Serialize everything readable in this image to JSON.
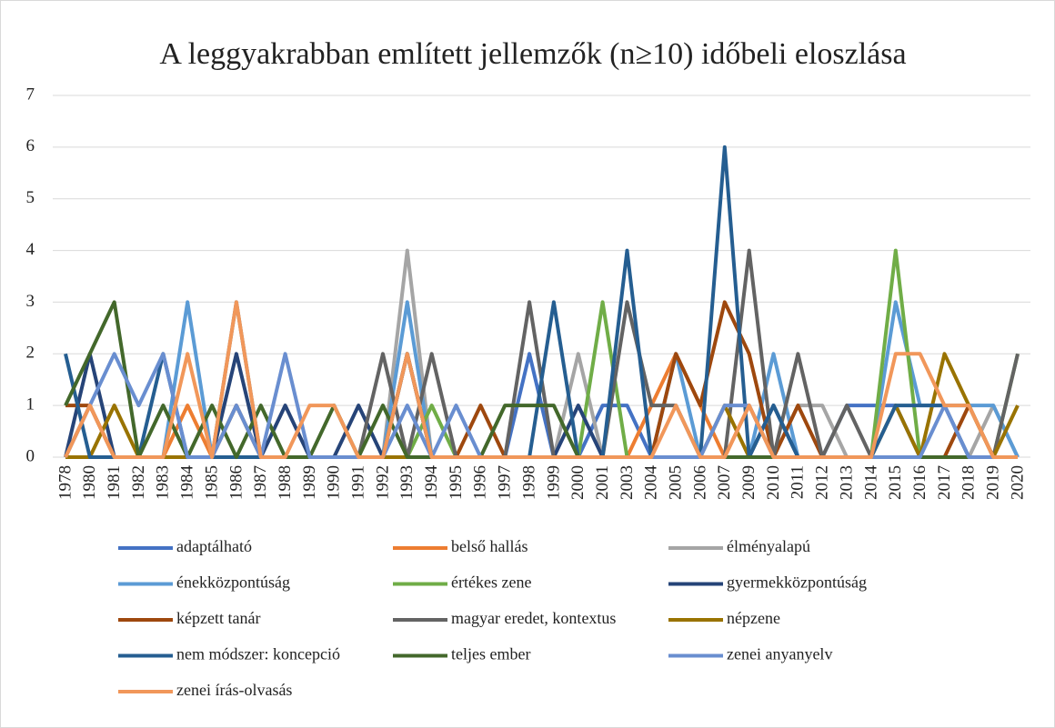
{
  "chart_data": {
    "type": "line",
    "title": "A leggyakrabban említett jellemzők (n≥10) időbeli eloszlása",
    "categories": [
      "1978",
      "1980",
      "1981",
      "1982",
      "1983",
      "1984",
      "1985",
      "1986",
      "1987",
      "1988",
      "1989",
      "1990",
      "1991",
      "1992",
      "1993",
      "1994",
      "1995",
      "1996",
      "1997",
      "1998",
      "1999",
      "2000",
      "2001",
      "2003",
      "2004",
      "2005",
      "2006",
      "2007",
      "2009",
      "2010",
      "2011",
      "2012",
      "2013",
      "2014",
      "2015",
      "2016",
      "2017",
      "2018",
      "2019",
      "2020"
    ],
    "ylim": [
      0,
      7
    ],
    "yticks": [
      0,
      1,
      2,
      3,
      4,
      5,
      6,
      7
    ],
    "grid": true,
    "legend": "bottom",
    "series": [
      {
        "name": "adaptálható",
        "color": "#4472c4",
        "values": [
          0,
          0,
          0,
          0,
          0,
          0,
          0,
          0,
          0,
          0,
          0,
          0,
          0,
          0,
          0,
          0,
          0,
          0,
          0,
          2,
          0,
          0,
          1,
          1,
          0,
          0,
          0,
          0,
          0,
          0,
          0,
          0,
          1,
          1,
          1,
          0,
          0,
          0,
          0,
          0
        ]
      },
      {
        "name": "belső hallás",
        "color": "#ed7d31",
        "values": [
          0,
          1,
          0,
          0,
          0,
          1,
          0,
          0,
          0,
          0,
          0,
          0,
          0,
          0,
          2,
          0,
          0,
          0,
          0,
          0,
          0,
          0,
          0,
          0,
          1,
          2,
          1,
          0,
          1,
          0,
          0,
          0,
          0,
          0,
          0,
          0,
          0,
          0,
          0,
          0
        ]
      },
      {
        "name": "élményalapú",
        "color": "#a5a5a5",
        "values": [
          0,
          0,
          0,
          0,
          0,
          0,
          0,
          0,
          0,
          0,
          0,
          0,
          0,
          0,
          4,
          0,
          0,
          0,
          0,
          0,
          0,
          2,
          0,
          0,
          0,
          0,
          0,
          0,
          0,
          0,
          1,
          1,
          0,
          0,
          0,
          0,
          0,
          0,
          1,
          0
        ]
      },
      {
        "name": "énekközpontúság",
        "color": "#5b9bd5",
        "values": [
          0,
          0,
          0,
          0,
          0,
          3,
          0,
          0,
          0,
          0,
          0,
          0,
          0,
          0,
          3,
          0,
          0,
          0,
          0,
          0,
          0,
          0,
          0,
          0,
          0,
          2,
          0,
          0,
          0,
          2,
          0,
          0,
          0,
          0,
          3,
          1,
          1,
          1,
          1,
          0
        ]
      },
      {
        "name": "értékes zene",
        "color": "#70ad47",
        "values": [
          0,
          0,
          0,
          0,
          0,
          0,
          0,
          0,
          0,
          0,
          0,
          0,
          0,
          0,
          0,
          1,
          0,
          0,
          0,
          0,
          0,
          0,
          3,
          0,
          0,
          0,
          0,
          0,
          0,
          0,
          0,
          0,
          0,
          0,
          4,
          0,
          0,
          0,
          0,
          2
        ]
      },
      {
        "name": "gyermekközpontúság",
        "color": "#264478",
        "values": [
          0,
          2,
          0,
          0,
          0,
          0,
          0,
          2,
          0,
          1,
          0,
          0,
          1,
          0,
          0,
          0,
          0,
          0,
          0,
          0,
          0,
          1,
          0,
          0,
          0,
          0,
          0,
          0,
          0,
          1,
          0,
          0,
          0,
          0,
          0,
          0,
          0,
          0,
          0,
          0
        ]
      },
      {
        "name": "képzett tanár",
        "color": "#9e480e",
        "values": [
          1,
          1,
          0,
          0,
          0,
          0,
          0,
          1,
          0,
          0,
          0,
          0,
          0,
          0,
          2,
          0,
          0,
          1,
          0,
          0,
          0,
          0,
          0,
          0,
          0,
          2,
          1,
          3,
          2,
          0,
          1,
          0,
          0,
          0,
          0,
          0,
          0,
          1,
          0,
          0
        ]
      },
      {
        "name": "magyar eredet, kontextus",
        "color": "#636363",
        "values": [
          0,
          0,
          0,
          0,
          0,
          0,
          0,
          3,
          0,
          0,
          0,
          0,
          0,
          2,
          0,
          2,
          0,
          0,
          0,
          3,
          0,
          0,
          0,
          3,
          1,
          1,
          0,
          0,
          4,
          0,
          2,
          0,
          1,
          0,
          0,
          0,
          0,
          0,
          0,
          2
        ]
      },
      {
        "name": "népzene",
        "color": "#997300",
        "values": [
          0,
          0,
          1,
          0,
          0,
          0,
          0,
          0,
          0,
          0,
          0,
          0,
          0,
          0,
          0,
          0,
          0,
          0,
          0,
          0,
          0,
          0,
          0,
          0,
          0,
          0,
          0,
          1,
          0,
          0,
          0,
          0,
          0,
          0,
          1,
          0,
          2,
          1,
          0,
          1
        ]
      },
      {
        "name": "nem módszer: koncepció",
        "color": "#255e91",
        "values": [
          2,
          0,
          0,
          0,
          2,
          0,
          0,
          0,
          0,
          0,
          0,
          0,
          0,
          0,
          2,
          0,
          0,
          0,
          0,
          0,
          3,
          0,
          0,
          4,
          0,
          0,
          0,
          6,
          0,
          1,
          0,
          0,
          0,
          0,
          1,
          1,
          1,
          0,
          0,
          0
        ]
      },
      {
        "name": "teljes ember",
        "color": "#43682b",
        "values": [
          1,
          2,
          3,
          0,
          1,
          0,
          1,
          0,
          1,
          0,
          0,
          1,
          0,
          1,
          0,
          0,
          0,
          0,
          1,
          1,
          1,
          0,
          0,
          0,
          0,
          0,
          0,
          0,
          0,
          0,
          0,
          0,
          0,
          0,
          0,
          0,
          0,
          0,
          0,
          0
        ]
      },
      {
        "name": "zenei anyanyelv",
        "color": "#698ed0",
        "values": [
          0,
          1,
          2,
          1,
          2,
          0,
          0,
          1,
          0,
          2,
          0,
          0,
          0,
          0,
          1,
          0,
          1,
          0,
          0,
          0,
          0,
          0,
          0,
          0,
          0,
          0,
          0,
          1,
          1,
          0,
          0,
          0,
          0,
          0,
          0,
          0,
          1,
          0,
          0,
          0
        ]
      },
      {
        "name": "zenei írás-olvasás",
        "color": "#f1975a",
        "values": [
          0,
          1,
          0,
          0,
          0,
          2,
          0,
          3,
          0,
          0,
          1,
          1,
          0,
          0,
          2,
          0,
          0,
          0,
          0,
          0,
          0,
          0,
          0,
          0,
          0,
          1,
          0,
          0,
          1,
          0,
          0,
          0,
          0,
          0,
          2,
          2,
          1,
          1,
          0,
          0
        ]
      }
    ]
  }
}
